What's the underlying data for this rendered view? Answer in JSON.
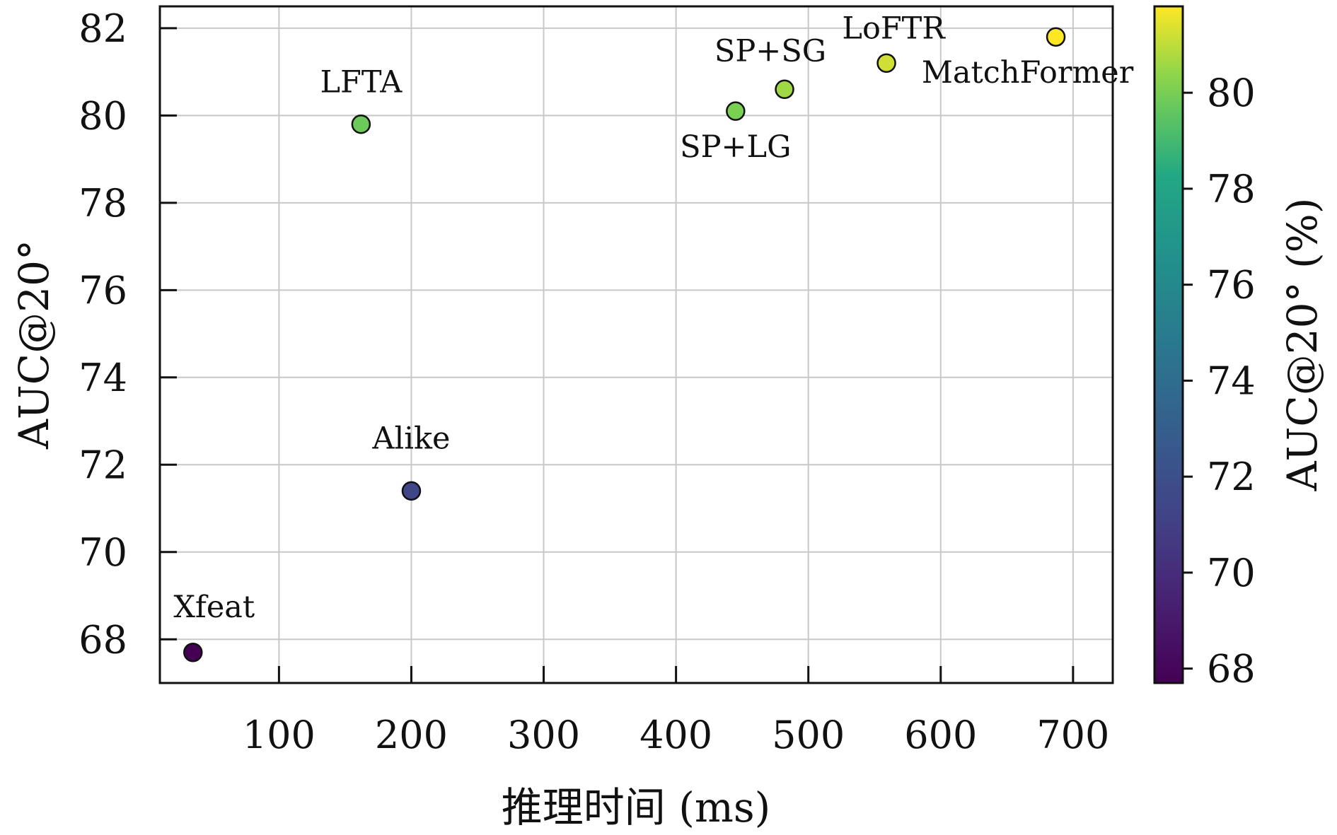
{
  "chart_data": {
    "type": "scatter",
    "xlabel": "推理时间 (ms)",
    "ylabel": "AUC@20°",
    "xlim": [
      10,
      730
    ],
    "ylim": [
      67,
      82.5
    ],
    "xticks": [
      100,
      200,
      300,
      400,
      500,
      600,
      700
    ],
    "yticks": [
      68,
      70,
      72,
      74,
      76,
      78,
      80,
      82
    ],
    "grid": true,
    "colorbar": {
      "label": "AUC@20° (%)",
      "colormap": "viridis",
      "range": [
        67.7,
        81.8
      ],
      "ticks": [
        68,
        70,
        72,
        74,
        76,
        78,
        80
      ]
    },
    "points": [
      {
        "label": "Xfeat",
        "x": 35,
        "y": 67.7
      },
      {
        "label": "LFTA",
        "x": 162,
        "y": 79.8
      },
      {
        "label": "Alike",
        "x": 200,
        "y": 71.4
      },
      {
        "label": "SP+LG",
        "x": 445,
        "y": 80.1
      },
      {
        "label": "SP+SG",
        "x": 482,
        "y": 80.6
      },
      {
        "label": "LoFTR",
        "x": 559,
        "y": 81.2
      },
      {
        "label": "MatchFormer",
        "x": 687,
        "y": 81.8
      }
    ]
  }
}
